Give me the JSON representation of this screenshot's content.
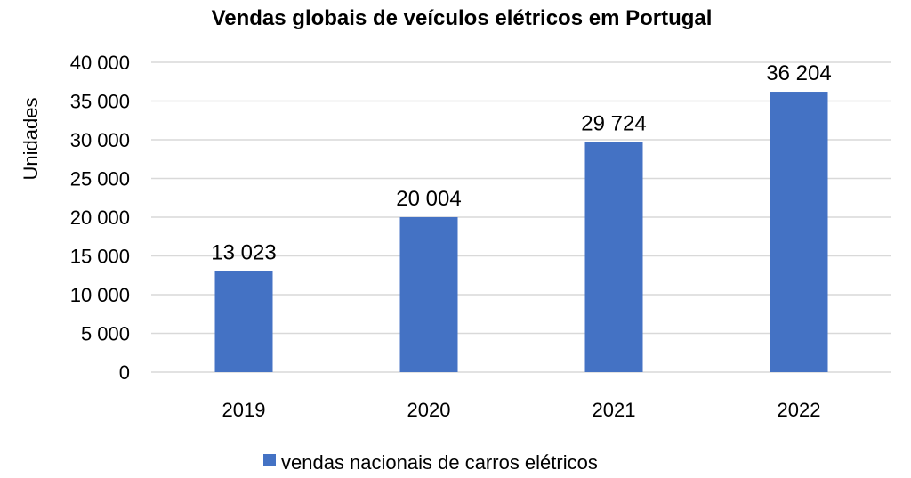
{
  "chart_data": {
    "type": "bar",
    "title": "Vendas globais de veículos elétricos em Portugal",
    "ylabel": "Unidades",
    "xlabel": "",
    "categories": [
      "2019",
      "2020",
      "2021",
      "2022"
    ],
    "series": [
      {
        "name": "vendas nacionais de carros elétricos",
        "values": [
          13023,
          20004,
          29724,
          36204
        ],
        "value_labels": [
          "13 023",
          "20 004",
          "29 724",
          "36 204"
        ],
        "color": "#4472C4"
      }
    ],
    "ylim": [
      0,
      40000
    ],
    "yticks": [
      0,
      5000,
      10000,
      15000,
      20000,
      25000,
      30000,
      35000,
      40000
    ],
    "ytick_labels": [
      "0",
      "5 000",
      "10 000",
      "15 000",
      "20 000",
      "25 000",
      "30 000",
      "35 000",
      "40 000"
    ],
    "grid": true,
    "legend_position": "bottom"
  }
}
